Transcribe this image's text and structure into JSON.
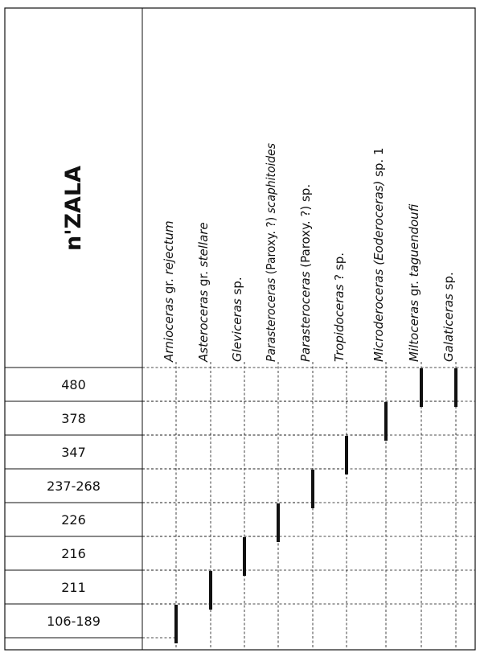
{
  "locality": "n'ZALA",
  "taxa": [
    {
      "segments": [
        {
          "text": "Arnioceras",
          "italic": true
        },
        {
          "text": " gr. ",
          "italic": false
        },
        {
          "text": "rejectum",
          "italic": true
        }
      ]
    },
    {
      "segments": [
        {
          "text": "Asteroceras",
          "italic": true
        },
        {
          "text": " gr. ",
          "italic": false
        },
        {
          "text": "stellare",
          "italic": true
        }
      ]
    },
    {
      "segments": [
        {
          "text": "Gleviceras",
          "italic": true
        },
        {
          "text": " sp.",
          "italic": false
        }
      ]
    },
    {
      "segments": [
        {
          "text": "Parasteroceras",
          "italic": true
        },
        {
          "text": " (Paroxy. ?) ",
          "italic": false
        },
        {
          "text": "scaphitoides",
          "italic": true
        }
      ]
    },
    {
      "segments": [
        {
          "text": "Parasteroceras",
          "italic": true
        },
        {
          "text": " (Paroxy. ?) sp.",
          "italic": false
        }
      ]
    },
    {
      "segments": [
        {
          "text": "Tropidoceras",
          "italic": true
        },
        {
          "text": " ? sp.",
          "italic": false
        }
      ]
    },
    {
      "segments": [
        {
          "text": "Microderoceras (Eoderoceras)",
          "italic": true
        },
        {
          "text": " sp. 1",
          "italic": false
        }
      ]
    },
    {
      "segments": [
        {
          "text": "Miltoceras",
          "italic": true
        },
        {
          "text": " gr. ",
          "italic": false
        },
        {
          "text": "taguendoufi",
          "italic": true
        }
      ]
    },
    {
      "segments": [
        {
          "text": "Galaticeras",
          "italic": true
        },
        {
          "text": " sp.",
          "italic": false
        }
      ]
    }
  ],
  "samples": [
    "480",
    "378",
    "347",
    "237-268",
    "226",
    "216",
    "211",
    "106-189"
  ],
  "occurrences": [
    {
      "taxon": 0,
      "sample": 7
    },
    {
      "taxon": 1,
      "sample": 6
    },
    {
      "taxon": 2,
      "sample": 5
    },
    {
      "taxon": 3,
      "sample": 4
    },
    {
      "taxon": 4,
      "sample": 3
    },
    {
      "taxon": 5,
      "sample": 2
    },
    {
      "taxon": 6,
      "sample": 1
    },
    {
      "taxon": 7,
      "sample": 0
    },
    {
      "taxon": 8,
      "sample": 0
    }
  ],
  "colors": {
    "ink": "#111111",
    "background": "#ffffff"
  }
}
